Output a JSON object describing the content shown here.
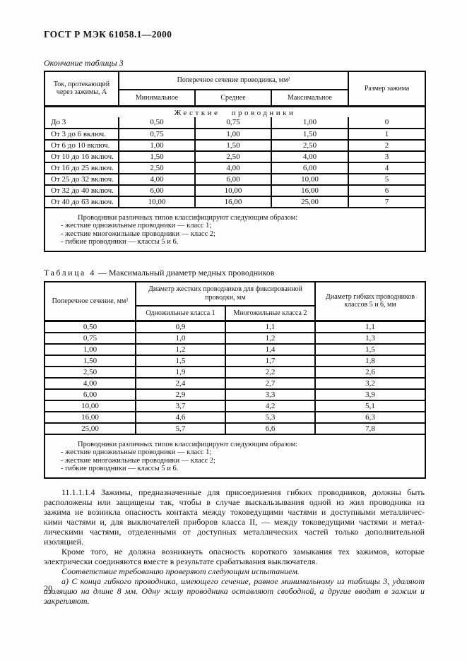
{
  "page": {
    "header_title": "ГОСТ Р МЭК 61058.1—2000",
    "page_number": "20"
  },
  "table3": {
    "caption": "Окончание таблицы 3",
    "col_current": "Ток, протекающий через зажимы, А",
    "col_cross_section": "Поперечное сечение проводника, мм²",
    "col_min": "Минимальное",
    "col_avg": "Среднее",
    "col_max": "Максимальное",
    "col_clamp_size": "Размер зажима",
    "section_title": "Жесткие проводники",
    "rows": [
      [
        "До 3",
        "0,50",
        "0,75",
        "1,00",
        "0"
      ],
      [
        "От 3 до 6 включ.",
        "0,75",
        "1,00",
        "1,50",
        "1"
      ],
      [
        "От 6 до 10 включ.",
        "1,00",
        "1,50",
        "2,50",
        "2"
      ],
      [
        "От 10 до 16 включ.",
        "1,50",
        "2,50",
        "4,00",
        "3"
      ],
      [
        "От 16 до 25 включ.",
        "2,50",
        "4,00",
        "6,00",
        "4"
      ],
      [
        "От 25 до 32 включ.",
        "4,00",
        "6,00",
        "10,00",
        "5"
      ],
      [
        "От 32 до 40 включ.",
        "6,00",
        "10,00",
        "16,00",
        "6"
      ],
      [
        "От 40 до 63 включ.",
        "10,00",
        "16,00",
        "25,00",
        "7"
      ]
    ],
    "note_lines": [
      "Проводники различных типов классифицируют следующим образом:",
      "- жесткие одножильные проводники — класс 1;",
      "- жесткие многожильные проводники — класс 2;",
      "- гибкие проводники — классы 5 и 6."
    ]
  },
  "table4": {
    "caption_label": "Таблица 4",
    "caption_text": "— Максимальный диаметр медных проводников",
    "col_cross_section": "Поперечное сечение, мм²",
    "col_fixed_diameter": "Диаметр жестких проводников для фиксированной проводки, мм",
    "col_single": "Одножильные класса 1",
    "col_multi": "Многожильные класса 2",
    "col_flexible": "Диаметр гибких проводников классов 5 и 6, мм",
    "rows": [
      [
        "0,50",
        "0,9",
        "1,1",
        "1,1"
      ],
      [
        "0,75",
        "1,0",
        "1,2",
        "1,3"
      ],
      [
        "1,00",
        "1,2",
        "1,4",
        "1,5"
      ],
      [
        "1,50",
        "1,5",
        "1,7",
        "1,8"
      ],
      [
        "2,50",
        "1,9",
        "2,2",
        "2,6"
      ],
      [
        "4,00",
        "2,4",
        "2,7",
        "3,2"
      ],
      [
        "6,00",
        "2,9",
        "3,3",
        "3,9"
      ],
      [
        "10,00",
        "3,7",
        "4,2",
        "5,1"
      ],
      [
        "16,00",
        "4,6",
        "5,3",
        "6,3"
      ],
      [
        "25,00",
        "5,7",
        "6,6",
        "7,8"
      ]
    ],
    "note_lines": [
      "Проводники различных типов классифицируют следующим образом:",
      "- жесткие одножильные проводники — класс 1;",
      "- жесткие многожильные проводники — класс 2;",
      "- гибкие проводники — классы 5 и 6."
    ]
  },
  "body": {
    "paragraphs": [
      {
        "style": "normal",
        "lines": [
          "11.1.1.1.4 Зажимы, предназначенные для присоединения гибких проводников, должны быть",
          "расположены или защищены так, чтобы в случае выскальзывания одной из жил проводника из",
          "зажима не возникла опасность контакта между токоведущими частями и доступными металличес-",
          "кими частями и, для выключателей приборов класса II, — между токоведущими частями и метал-",
          "лическими частями, отделенными от доступных металлических частей только дополнительной",
          "изоляцией."
        ]
      },
      {
        "style": "normal",
        "lines": [
          "Кроме того, не должна возникнуть опасность короткого замыкания тех зажимов, которые",
          "электрически соединяются вместе в результате срабатывания выключателя."
        ]
      },
      {
        "style": "italic",
        "lines": [
          "Соответствие требованию проверяют следующим испытанием."
        ]
      },
      {
        "style": "italic",
        "lines": [
          "а) С конца гибкого проводника, имеющего сечение, равное минимальному из таблицы 3, удаляют",
          "изоляцию на длине 8 мм. Одну жилу проводника оставляют свободной, а другие вводят в зажим и",
          "закрепляют."
        ]
      }
    ]
  }
}
